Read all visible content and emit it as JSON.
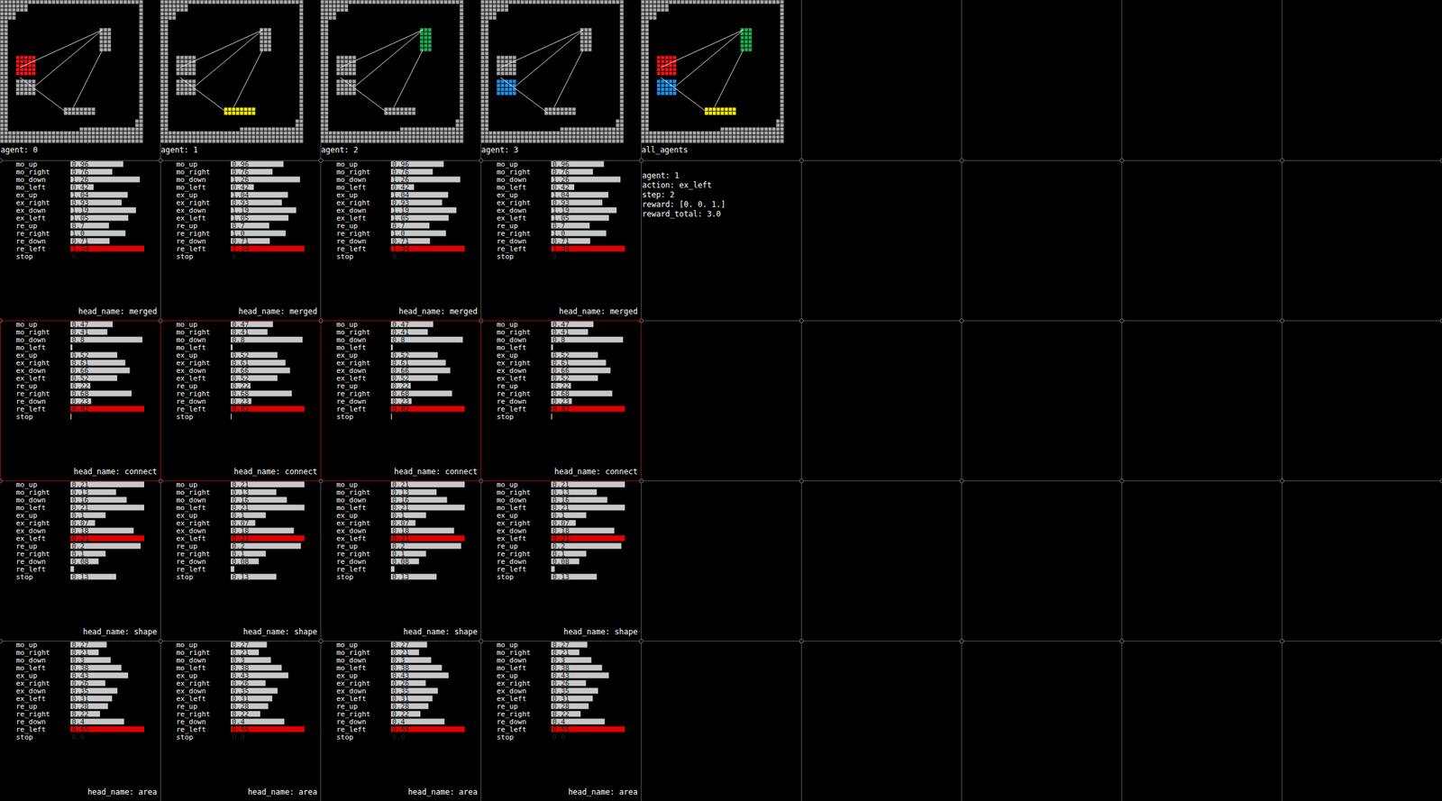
{
  "maps": [
    {
      "label": "agent: 0",
      "object_colors": [
        "#e8161b",
        null,
        null,
        null
      ]
    },
    {
      "label": "agent: 1",
      "object_colors": [
        null,
        null,
        null,
        "#f2e600"
      ]
    },
    {
      "label": "agent: 2",
      "object_colors": [
        null,
        null,
        "#1fa84f",
        null
      ]
    },
    {
      "label": "agent: 3",
      "object_colors": [
        null,
        "#1e8fe6",
        null,
        null
      ]
    },
    {
      "label": "all_agents",
      "object_colors": [
        "#e8161b",
        "#1e8fe6",
        "#1fa84f",
        "#f2e600"
      ]
    }
  ],
  "info": [
    "agent: 1",
    "action: ex_left",
    "step: 2",
    "reward: [0. 0. 1.]",
    "reward_total: 3.0"
  ],
  "chart_columns": 4,
  "chart_data": [
    {
      "type": "bar",
      "orientation": "horizontal",
      "title": "head_name: merged",
      "categories": [
        "mo_up",
        "mo_right",
        "mo_down",
        "mo_left",
        "ex_up",
        "ex_right",
        "ex_down",
        "ex_left",
        "re_up",
        "re_right",
        "re_down",
        "re_left",
        "stop"
      ],
      "values": [
        0.96,
        0.76,
        1.26,
        0.42,
        1.04,
        0.93,
        1.19,
        1.05,
        0.7,
        1.0,
        0.71,
        1.34,
        0
      ],
      "value_labels": [
        "0.96",
        "0.76",
        "1.26",
        "0.42",
        "1.04",
        "0.93",
        "1.19",
        "1.05",
        "0.7",
        "1.0",
        "0.71",
        "1.34",
        "0."
      ],
      "colors": [
        "#c8c8c8",
        "#c8c8c8",
        "#c8c8c8",
        "#c8c8c8",
        "#c8c8c8",
        "#c8c8c8",
        "#c8c8c8",
        "#c8c8c8",
        "#c8c8c8",
        "#c8c8c8",
        "#c8c8c8",
        "#e00000",
        "#c8c8c8"
      ],
      "xlim": [
        0,
        1.34
      ],
      "data_labels": true,
      "tick_labels": "y",
      "grid": false
    },
    {
      "type": "bar",
      "orientation": "horizontal",
      "title": "head_name: connect",
      "categories": [
        "mo_up",
        "mo_right",
        "mo_down",
        "mo_left",
        "ex_up",
        "ex_right",
        "ex_down",
        "ex_left",
        "re_up",
        "re_right",
        "re_down",
        "re_left",
        "stop"
      ],
      "values": [
        0.47,
        0.41,
        0.8,
        0.02,
        0.52,
        0.61,
        0.66,
        0.52,
        0.22,
        0.68,
        0.23,
        0.82,
        0.01
      ],
      "value_labels": [
        "0.47",
        "0.41",
        "0.8",
        null,
        "0.52",
        "0.61",
        "0.66",
        "0.52",
        "0.22",
        "0.68",
        "0.23",
        "0.82",
        null
      ],
      "colors": [
        "#c8c8c8",
        "#c8c8c8",
        "#c8c8c8",
        "#c8c8c8",
        "#c8c8c8",
        "#c8c8c8",
        "#c8c8c8",
        "#c8c8c8",
        "#c8c8c8",
        "#c8c8c8",
        "#c8c8c8",
        "#e00000",
        "#c8c8c8"
      ],
      "xlim": [
        0,
        0.82
      ],
      "data_labels": true,
      "tick_labels": "y",
      "grid": false
    },
    {
      "type": "bar",
      "orientation": "horizontal",
      "title": "head_name: shape",
      "categories": [
        "mo_up",
        "mo_right",
        "mo_down",
        "mo_left",
        "ex_up",
        "ex_right",
        "ex_down",
        "ex_left",
        "re_up",
        "re_right",
        "re_down",
        "re_left",
        "stop"
      ],
      "values": [
        0.21,
        0.13,
        0.16,
        0.21,
        0.1,
        0.07,
        0.18,
        0.21,
        0.2,
        0.1,
        0.08,
        0.01,
        0.13
      ],
      "value_labels": [
        "0.21",
        "0.13",
        "0.16",
        "0.21",
        "0.1",
        "0.07",
        "0.18",
        "0.21",
        "0.2",
        "0.1",
        "0.08",
        null,
        "0.13"
      ],
      "colors": [
        "#c8c8c8",
        "#c8c8c8",
        "#c8c8c8",
        "#c8c8c8",
        "#c8c8c8",
        "#c8c8c8",
        "#c8c8c8",
        "#e00000",
        "#c8c8c8",
        "#c8c8c8",
        "#c8c8c8",
        "#c8c8c8",
        "#c8c8c8"
      ],
      "xlim": [
        0,
        0.21
      ],
      "data_labels": true,
      "tick_labels": "y",
      "grid": false
    },
    {
      "type": "bar",
      "orientation": "horizontal",
      "title": "head_name: area",
      "categories": [
        "mo_up",
        "mo_right",
        "mo_down",
        "mo_left",
        "ex_up",
        "ex_right",
        "ex_down",
        "ex_left",
        "re_up",
        "re_right",
        "re_down",
        "re_left",
        "stop"
      ],
      "values": [
        0.27,
        0.21,
        0.3,
        0.38,
        0.43,
        0.26,
        0.35,
        0.31,
        0.28,
        0.22,
        0.4,
        0.55,
        0.0
      ],
      "value_labels": [
        "0.27",
        "0.21",
        "0.3",
        "0.38",
        "0.43",
        "0.26",
        "0.35",
        "0.31",
        "0.28",
        "0.22",
        "0.4",
        "0.55",
        "0.0"
      ],
      "colors": [
        "#c8c8c8",
        "#c8c8c8",
        "#c8c8c8",
        "#c8c8c8",
        "#c8c8c8",
        "#c8c8c8",
        "#c8c8c8",
        "#c8c8c8",
        "#c8c8c8",
        "#c8c8c8",
        "#c8c8c8",
        "#e00000",
        "#c8c8c8"
      ],
      "xlim": [
        0,
        0.55
      ],
      "data_labels": true,
      "tick_labels": "y",
      "grid": false
    }
  ]
}
